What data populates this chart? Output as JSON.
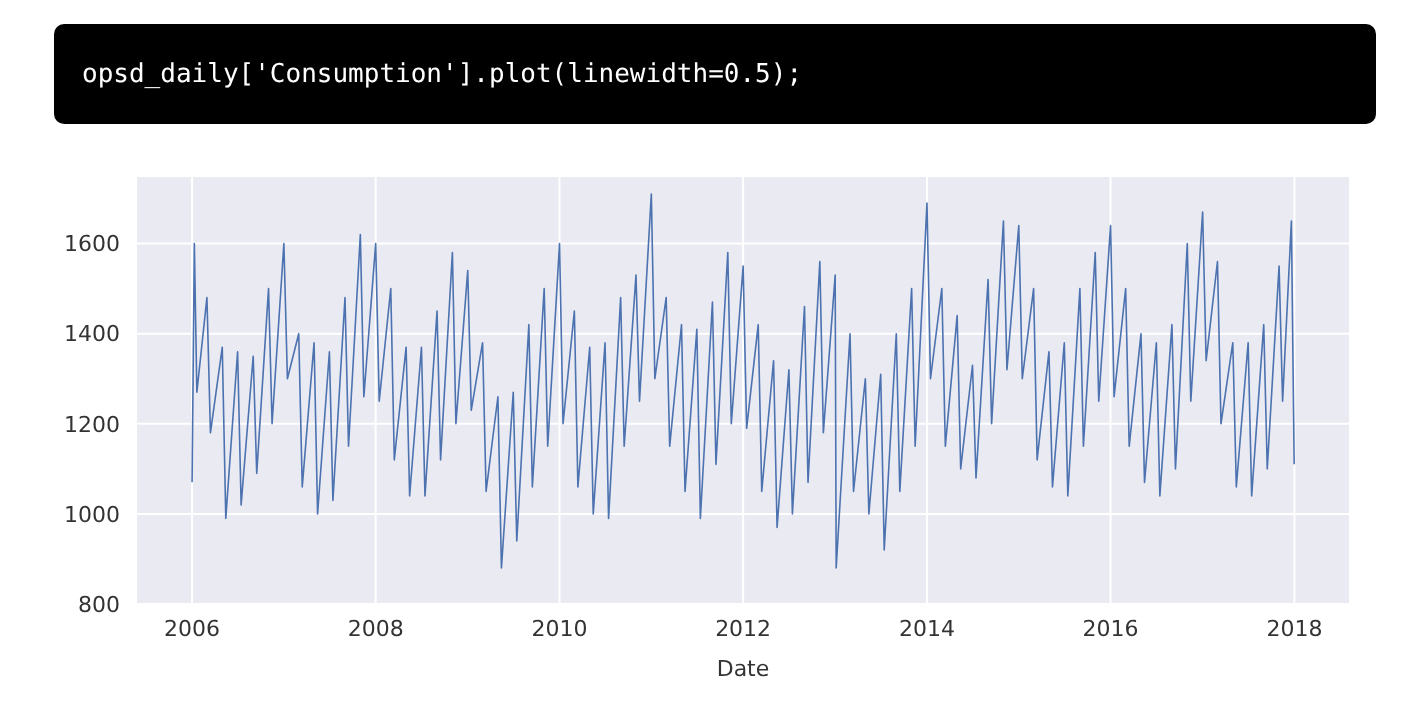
{
  "chart_data": {
    "type": "line",
    "xlabel": "Date",
    "annotations": [
      "opsd_daily['Consumption'].plot(linewidth=0.5);"
    ],
    "x": [
      "2006-01-01",
      "2006-01-10",
      "2006-01-20",
      "2006-03-01",
      "2006-03-15",
      "2006-05-01",
      "2006-05-15",
      "2006-07-01",
      "2006-07-15",
      "2006-09-01",
      "2006-09-15",
      "2006-11-01",
      "2006-11-15",
      "2007-01-01",
      "2007-01-15",
      "2007-03-01",
      "2007-03-15",
      "2007-05-01",
      "2007-05-15",
      "2007-07-01",
      "2007-07-15",
      "2007-09-01",
      "2007-09-15",
      "2007-11-01",
      "2007-11-15",
      "2008-01-01",
      "2008-01-15",
      "2008-03-01",
      "2008-03-15",
      "2008-05-01",
      "2008-05-15",
      "2008-07-01",
      "2008-07-15",
      "2008-09-01",
      "2008-09-15",
      "2008-11-01",
      "2008-11-15",
      "2009-01-01",
      "2009-01-15",
      "2009-03-01",
      "2009-03-15",
      "2009-05-01",
      "2009-05-15",
      "2009-07-01",
      "2009-07-15",
      "2009-09-01",
      "2009-09-15",
      "2009-11-01",
      "2009-11-15",
      "2010-01-01",
      "2010-01-15",
      "2010-03-01",
      "2010-03-15",
      "2010-05-01",
      "2010-05-15",
      "2010-07-01",
      "2010-07-15",
      "2010-09-01",
      "2010-09-15",
      "2010-11-01",
      "2010-11-15",
      "2011-01-01",
      "2011-01-15",
      "2011-03-01",
      "2011-03-15",
      "2011-05-01",
      "2011-05-15",
      "2011-07-01",
      "2011-07-15",
      "2011-09-01",
      "2011-09-15",
      "2011-11-01",
      "2011-11-15",
      "2012-01-01",
      "2012-01-15",
      "2012-03-01",
      "2012-03-15",
      "2012-05-01",
      "2012-05-15",
      "2012-07-01",
      "2012-07-15",
      "2012-09-01",
      "2012-09-15",
      "2012-11-01",
      "2012-11-15",
      "2013-01-01",
      "2013-01-05",
      "2013-03-01",
      "2013-03-15",
      "2013-05-01",
      "2013-05-15",
      "2013-07-01",
      "2013-07-15",
      "2013-09-01",
      "2013-09-15",
      "2013-11-01",
      "2013-11-15",
      "2014-01-01",
      "2014-01-15",
      "2014-03-01",
      "2014-03-15",
      "2014-05-01",
      "2014-05-15",
      "2014-07-01",
      "2014-07-15",
      "2014-09-01",
      "2014-09-15",
      "2014-11-01",
      "2014-11-15",
      "2015-01-01",
      "2015-01-15",
      "2015-03-01",
      "2015-03-15",
      "2015-05-01",
      "2015-05-15",
      "2015-07-01",
      "2015-07-15",
      "2015-09-01",
      "2015-09-15",
      "2015-11-01",
      "2015-11-15",
      "2016-01-01",
      "2016-01-15",
      "2016-03-01",
      "2016-03-15",
      "2016-05-01",
      "2016-05-15",
      "2016-07-01",
      "2016-07-15",
      "2016-09-01",
      "2016-09-15",
      "2016-11-01",
      "2016-11-15",
      "2017-01-01",
      "2017-01-15",
      "2017-03-01",
      "2017-03-15",
      "2017-05-01",
      "2017-05-15",
      "2017-07-01",
      "2017-07-15",
      "2017-09-01",
      "2017-09-15",
      "2017-11-01",
      "2017-11-15",
      "2017-12-20",
      "2017-12-31"
    ],
    "series": [
      {
        "color": "#4c72b0",
        "values": [
          1070,
          1600,
          1270,
          1480,
          1180,
          1370,
          990,
          1360,
          1020,
          1350,
          1090,
          1500,
          1200,
          1600,
          1300,
          1400,
          1060,
          1380,
          1000,
          1360,
          1030,
          1480,
          1150,
          1620,
          1260,
          1600,
          1250,
          1500,
          1120,
          1370,
          1040,
          1370,
          1040,
          1450,
          1120,
          1580,
          1200,
          1540,
          1230,
          1380,
          1050,
          1260,
          880,
          1270,
          940,
          1420,
          1060,
          1500,
          1150,
          1600,
          1200,
          1450,
          1060,
          1370,
          1000,
          1380,
          990,
          1480,
          1150,
          1530,
          1250,
          1710,
          1300,
          1480,
          1150,
          1420,
          1050,
          1410,
          990,
          1470,
          1110,
          1580,
          1200,
          1550,
          1190,
          1420,
          1050,
          1340,
          970,
          1320,
          1000,
          1460,
          1070,
          1560,
          1180,
          1530,
          880,
          1400,
          1050,
          1300,
          1000,
          1310,
          920,
          1400,
          1050,
          1500,
          1150,
          1690,
          1300,
          1500,
          1150,
          1440,
          1100,
          1330,
          1080,
          1520,
          1200,
          1650,
          1320,
          1640,
          1300,
          1500,
          1120,
          1360,
          1060,
          1380,
          1040,
          1500,
          1150,
          1580,
          1250,
          1640,
          1260,
          1500,
          1150,
          1400,
          1070,
          1380,
          1040,
          1420,
          1100,
          1600,
          1250,
          1670,
          1340,
          1560,
          1200,
          1380,
          1060,
          1380,
          1040,
          1420,
          1100,
          1550,
          1250,
          1650,
          1110
        ]
      }
    ],
    "xlim": [
      "2005-05-23",
      "2018-08-10"
    ],
    "xticks": [
      "2006",
      "2008",
      "2010",
      "2012",
      "2014",
      "2016",
      "2018"
    ],
    "ylim": [
      800,
      1750
    ],
    "yticks": [
      800,
      1000,
      1200,
      1400,
      1600
    ],
    "grid": true,
    "marker": "none",
    "line_style": "solid"
  }
}
